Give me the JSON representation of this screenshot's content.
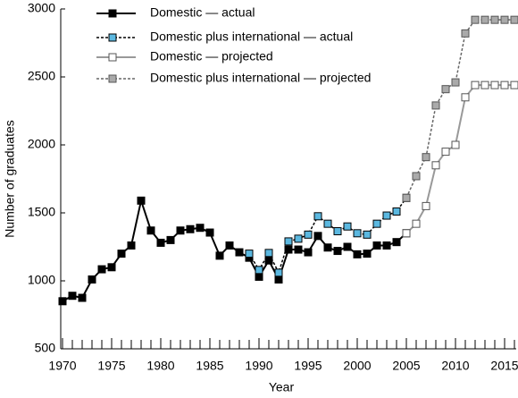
{
  "chart_data": {
    "type": "line",
    "x_label": "Year",
    "y_label": "Number of graduates",
    "xlim": [
      1970,
      2016
    ],
    "ylim": [
      500,
      3000
    ],
    "xticks": [
      1970,
      1975,
      1980,
      1985,
      1990,
      1995,
      2000,
      2005,
      2010,
      2015
    ],
    "xminorticks": [
      1970,
      1971,
      1972,
      1973,
      1974,
      1975,
      1976,
      1977,
      1978,
      1979,
      1980,
      1981,
      1982,
      1983,
      1984,
      1985,
      1986,
      1987,
      1988,
      1989,
      1990,
      1991,
      1992,
      1993,
      1994,
      1995,
      1996,
      1997,
      1998,
      1999,
      2000,
      2001,
      2002,
      2003,
      2004,
      2005,
      2006,
      2007,
      2008,
      2009,
      2010,
      2011,
      2012,
      2013,
      2014,
      2015,
      2016
    ],
    "yticks": [
      500,
      1000,
      1500,
      2000,
      2500,
      3000
    ],
    "legend": "upper left",
    "series": [
      {
        "name": "Domestic — actual",
        "color": "#000000",
        "marker_fill": "#000000",
        "dashed": false,
        "x": [
          1970,
          1971,
          1972,
          1973,
          1974,
          1975,
          1976,
          1977,
          1978,
          1979,
          1980,
          1981,
          1982,
          1983,
          1984,
          1985,
          1986,
          1987,
          1988,
          1989,
          1990,
          1991,
          1992,
          1993,
          1994,
          1995,
          1996,
          1997,
          1998,
          1999,
          2000,
          2001,
          2002,
          2003,
          2004,
          2005
        ],
        "values": [
          850,
          890,
          875,
          1010,
          1085,
          1100,
          1200,
          1260,
          1590,
          1370,
          1280,
          1300,
          1370,
          1380,
          1390,
          1355,
          1185,
          1260,
          1210,
          1170,
          1030,
          1150,
          1010,
          1230,
          1230,
          1210,
          1330,
          1245,
          1220,
          1250,
          1195,
          1200,
          1260,
          1260,
          1285,
          1350
        ]
      },
      {
        "name": "Domestic plus international — actual",
        "color": "#000000",
        "marker_fill": "#5bb8e0",
        "dashed": true,
        "x": [
          1989,
          1990,
          1991,
          1992,
          1993,
          1994,
          1995,
          1996,
          1997,
          1998,
          1999,
          2000,
          2001,
          2002,
          2003,
          2004,
          2005
        ],
        "values": [
          1200,
          1080,
          1205,
          1060,
          1290,
          1310,
          1340,
          1475,
          1420,
          1365,
          1400,
          1350,
          1340,
          1420,
          1480,
          1510,
          1610
        ]
      },
      {
        "name": "Domestic — projected",
        "color": "#999999",
        "marker_fill": "#ffffff",
        "dashed": false,
        "x": [
          2005,
          2006,
          2007,
          2008,
          2009,
          2010,
          2011,
          2012,
          2013,
          2014,
          2015,
          2016
        ],
        "values": [
          1350,
          1420,
          1550,
          1850,
          1950,
          2000,
          2350,
          2440,
          2440,
          2440,
          2440,
          2440
        ]
      },
      {
        "name": "Domestic plus international — projected",
        "color": "#666666",
        "marker_fill": "#aaaaaa",
        "dashed": true,
        "x": [
          2005,
          2006,
          2007,
          2008,
          2009,
          2010,
          2011,
          2012,
          2013,
          2014,
          2015,
          2016
        ],
        "values": [
          1610,
          1770,
          1910,
          2290,
          2410,
          2460,
          2820,
          2920,
          2920,
          2920,
          2920,
          2920
        ]
      }
    ]
  }
}
